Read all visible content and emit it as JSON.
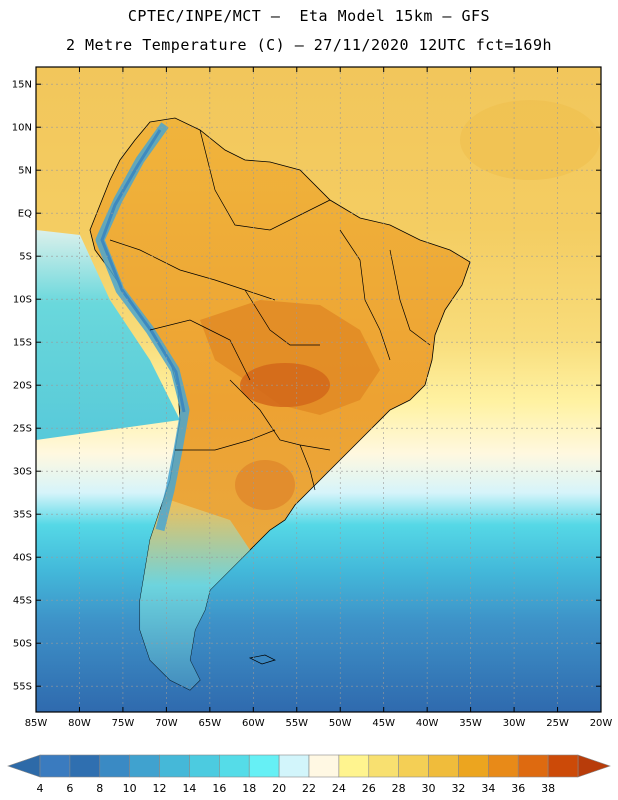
{
  "header": {
    "line1": "CPTEC/INPE/MCT –  Eta Model 15km – GFS",
    "line2": "2 Metre Temperature (C) – 27/11/2020 12UTC fct=169h"
  },
  "map": {
    "lon_range": [
      -85,
      -20
    ],
    "lat_range": [
      17,
      -58
    ],
    "lat_ticks": [
      "15N",
      "10N",
      "5N",
      "EQ",
      "5S",
      "10S",
      "15S",
      "20S",
      "25S",
      "30S",
      "35S",
      "40S",
      "45S",
      "50S",
      "55S"
    ],
    "lon_ticks": [
      "85W",
      "80W",
      "75W",
      "70W",
      "65W",
      "60W",
      "55W",
      "50W",
      "45W",
      "40W",
      "35W",
      "30W",
      "25W",
      "20W"
    ]
  },
  "colorbar": {
    "labels": [
      "4",
      "6",
      "8",
      "10",
      "12",
      "14",
      "16",
      "18",
      "20",
      "22",
      "24",
      "26",
      "28",
      "30",
      "32",
      "34",
      "36",
      "38"
    ],
    "colors": [
      "#3a7bbf",
      "#2f6fb0",
      "#3a8ac4",
      "#40a2cf",
      "#45b8d8",
      "#4ccbe0",
      "#55dce8",
      "#66f0f5",
      "#d2f5fb",
      "#fff8e3",
      "#fff48f",
      "#f8e070",
      "#f4cf55",
      "#f0bc3b",
      "#eca51f",
      "#e88a18",
      "#de6a10",
      "#cc4a08"
    ],
    "left_arrow_color": "#2d6aa8",
    "right_arrow_color": "#b83c0a"
  },
  "palette": {
    "ocean_north": "#f2c65b",
    "ocean_mid": "#fff4a8",
    "ocean_cool": "#45cbe0",
    "ocean_cold": "#3a80c0",
    "land_warm": "#eba534",
    "land_hot": "#d8761c",
    "andes": "#4aa6d0"
  }
}
